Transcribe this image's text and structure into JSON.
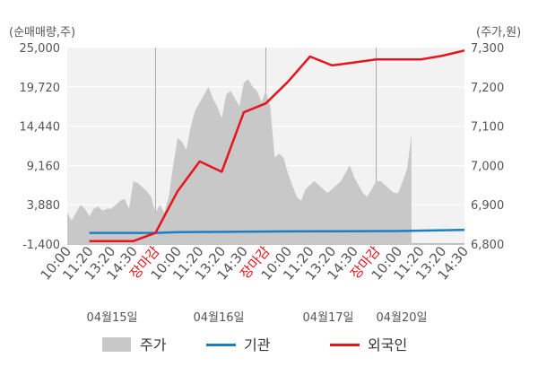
{
  "chart_data": {
    "type": "line",
    "left_axis_label": "(순매매량,주)",
    "right_axis_label": "(주가,원)",
    "left_ticks": [
      "25,000",
      "19,720",
      "14,440",
      "9,160",
      "3,880",
      "-1,400"
    ],
    "right_ticks": [
      "7,300",
      "7,200",
      "7,100",
      "7,000",
      "6,900",
      "6,800"
    ],
    "ylim_left": [
      -1400,
      25000
    ],
    "ylim_right": [
      6800,
      7300
    ],
    "x_tick_labels": [
      {
        "label": "10:00",
        "red": false
      },
      {
        "label": "11:20",
        "red": false
      },
      {
        "label": "13:20",
        "red": false
      },
      {
        "label": "14:30",
        "red": false
      },
      {
        "label": "장마감",
        "red": true
      },
      {
        "label": "10:00",
        "red": false
      },
      {
        "label": "11:20",
        "red": false
      },
      {
        "label": "13:20",
        "red": false
      },
      {
        "label": "14:30",
        "red": false
      },
      {
        "label": "장마감",
        "red": true
      },
      {
        "label": "10:00",
        "red": false
      },
      {
        "label": "11:20",
        "red": false
      },
      {
        "label": "13:20",
        "red": false
      },
      {
        "label": "14:30",
        "red": false
      },
      {
        "label": "장마감",
        "red": true
      },
      {
        "label": "10:00",
        "red": false
      },
      {
        "label": "11:20",
        "red": false
      },
      {
        "label": "13:20",
        "red": false
      },
      {
        "label": "14:30",
        "red": false
      }
    ],
    "date_labels": [
      "04월15일",
      "04월16일",
      "04월17일",
      "04월20일"
    ],
    "series": [
      {
        "name": "주가",
        "type": "area",
        "color": "#c8c8c8",
        "axis": "right",
        "x": [
          0,
          0.2,
          0.4,
          0.6,
          0.8,
          1.0,
          1.2,
          1.4,
          1.6,
          1.8,
          2.0,
          2.2,
          2.4,
          2.6,
          2.8,
          3.0,
          3.2,
          3.4,
          3.6,
          3.8,
          4.0,
          4.2,
          4.4,
          4.6,
          4.8,
          5.0,
          5.2,
          5.4,
          5.6,
          5.8,
          6.0,
          6.2,
          6.4,
          6.6,
          6.8,
          7.0,
          7.2,
          7.4,
          7.6,
          7.8,
          8.0,
          8.2,
          8.4,
          8.6,
          8.8,
          9.0,
          9.2,
          9.4,
          9.6,
          9.8,
          10.0,
          10.2,
          10.4,
          10.6,
          10.8,
          11.0,
          11.2,
          11.4,
          11.6,
          11.8,
          12.0,
          12.2,
          12.4,
          12.6,
          12.8,
          13.0,
          13.2,
          13.4,
          13.6,
          13.8,
          14.0,
          14.2,
          14.4,
          14.6,
          14.8,
          15.0,
          15.2,
          15.4,
          15.6
        ],
        "values": [
          6880,
          6860,
          6880,
          6900,
          6890,
          6870,
          6890,
          6895,
          6885,
          6890,
          6890,
          6900,
          6910,
          6915,
          6890,
          6960,
          6955,
          6945,
          6935,
          6920,
          6880,
          6900,
          6880,
          6920,
          7000,
          7070,
          7060,
          7040,
          7100,
          7140,
          7160,
          7180,
          7200,
          7170,
          7150,
          7120,
          7180,
          7190,
          7170,
          7150,
          7210,
          7220,
          7200,
          7190,
          7160,
          7190,
          7150,
          7020,
          7030,
          7020,
          6980,
          6950,
          6920,
          6910,
          6940,
          6950,
          6960,
          6950,
          6940,
          6930,
          6940,
          6950,
          6960,
          6980,
          7000,
          6970,
          6950,
          6930,
          6920,
          6940,
          6960,
          6960,
          6950,
          6940,
          6930,
          6930,
          6960,
          6990,
          7080
        ]
      },
      {
        "name": "기관",
        "type": "line",
        "color": "#1a7fc9",
        "axis": "left",
        "x": [
          1,
          4,
          5,
          10,
          15,
          18
        ],
        "values": [
          100,
          100,
          200,
          300,
          350,
          500
        ]
      },
      {
        "name": "외국인",
        "type": "line",
        "color": "#e8141c",
        "axis": "left",
        "x": [
          1,
          2,
          3,
          4,
          5,
          6,
          7,
          8,
          9,
          10,
          11,
          12,
          13,
          14,
          15,
          16,
          17,
          18
        ],
        "values": [
          -1000,
          -1000,
          -1000,
          100,
          5700,
          9700,
          8300,
          16300,
          17500,
          20400,
          23800,
          22600,
          23000,
          23400,
          23400,
          23400,
          23900,
          24600
        ]
      }
    ],
    "grid": true,
    "legend_position": "bottom-center"
  }
}
